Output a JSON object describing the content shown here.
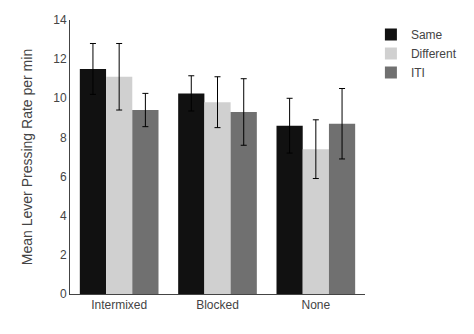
{
  "chart_data": {
    "type": "bar",
    "categories": [
      "Intermixed",
      "Blocked",
      "None"
    ],
    "series": [
      {
        "name": "Same",
        "color": "#111111",
        "values": [
          11.5,
          10.25,
          8.6
        ],
        "errors": [
          1.3,
          0.9,
          1.4
        ]
      },
      {
        "name": "Different",
        "color": "#d0d0d0",
        "values": [
          11.1,
          9.8,
          7.4
        ],
        "errors": [
          1.7,
          1.3,
          1.5
        ]
      },
      {
        "name": "ITI",
        "color": "#707070",
        "values": [
          9.4,
          9.3,
          8.7
        ],
        "errors": [
          0.85,
          1.7,
          1.8
        ]
      }
    ],
    "ylabel": "Mean Lever Pressing Rate per min",
    "ylim": [
      0,
      14
    ],
    "yticks": [
      0,
      2,
      4,
      6,
      8,
      10,
      12,
      14
    ],
    "grid": false,
    "legend": "upper right"
  }
}
